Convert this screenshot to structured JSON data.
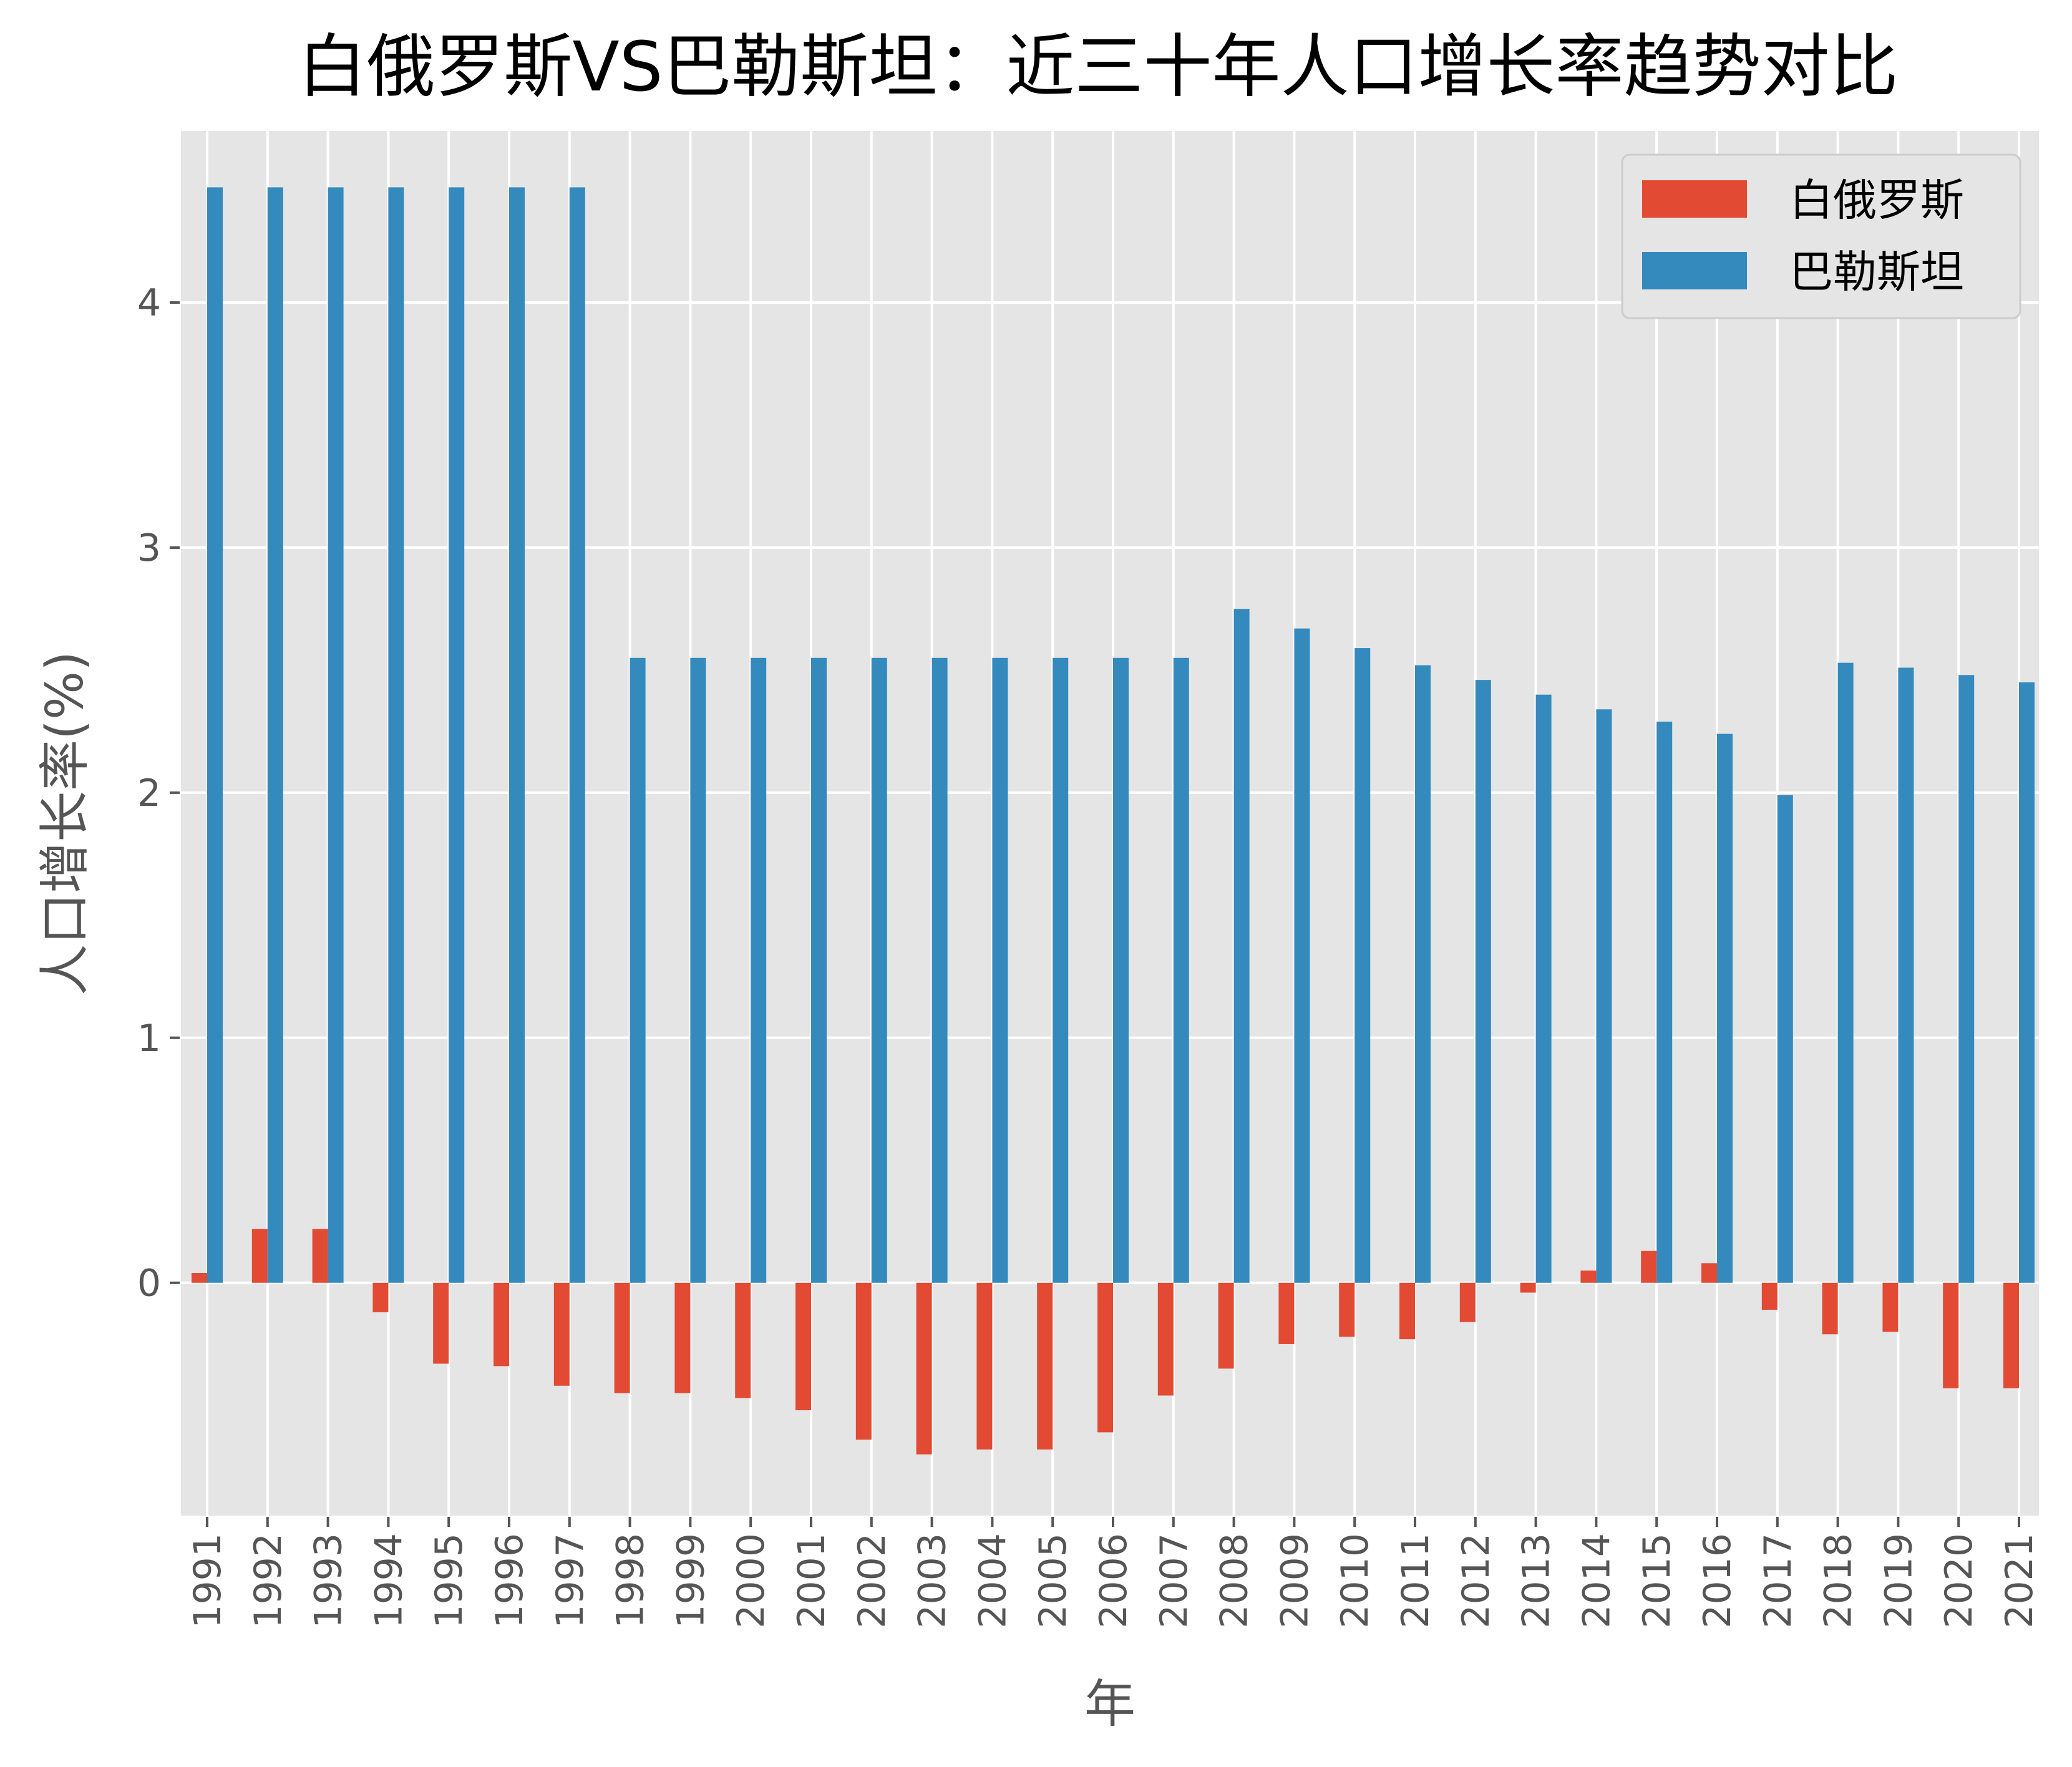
{
  "chart_data": {
    "type": "bar",
    "title": "白俄罗斯VS巴勒斯坦：近三十年人口增长率趋势对比",
    "xlabel": "年",
    "ylabel": "人口增长率(%)",
    "ylim": [
      -0.95,
      4.7
    ],
    "yticks": [
      0,
      1,
      2,
      3,
      4
    ],
    "grid": true,
    "legend_position": "top-right",
    "categories": [
      "1991",
      "1992",
      "1993",
      "1994",
      "1995",
      "1996",
      "1997",
      "1998",
      "1999",
      "2000",
      "2001",
      "2002",
      "2003",
      "2004",
      "2005",
      "2006",
      "2007",
      "2008",
      "2009",
      "2010",
      "2011",
      "2012",
      "2013",
      "2014",
      "2015",
      "2016",
      "2017",
      "2018",
      "2019",
      "2020",
      "2021"
    ],
    "series": [
      {
        "name": "白俄罗斯",
        "color": "#E24A33",
        "values": [
          0.04,
          0.22,
          0.22,
          -0.12,
          -0.33,
          -0.34,
          -0.42,
          -0.45,
          -0.45,
          -0.47,
          -0.52,
          -0.64,
          -0.7,
          -0.68,
          -0.68,
          -0.61,
          -0.46,
          -0.35,
          -0.25,
          -0.22,
          -0.23,
          -0.16,
          -0.04,
          0.05,
          0.13,
          0.08,
          -0.11,
          -0.21,
          -0.2,
          -0.43,
          -0.43
        ]
      },
      {
        "name": "巴勒斯坦",
        "color": "#348ABD",
        "values": [
          4.47,
          4.47,
          4.47,
          4.47,
          4.47,
          4.47,
          4.47,
          2.55,
          2.55,
          2.55,
          2.55,
          2.55,
          2.55,
          2.55,
          2.55,
          2.55,
          2.55,
          2.75,
          2.67,
          2.59,
          2.52,
          2.46,
          2.4,
          2.34,
          2.29,
          2.24,
          1.99,
          2.53,
          2.51,
          2.48,
          2.45
        ]
      }
    ]
  }
}
